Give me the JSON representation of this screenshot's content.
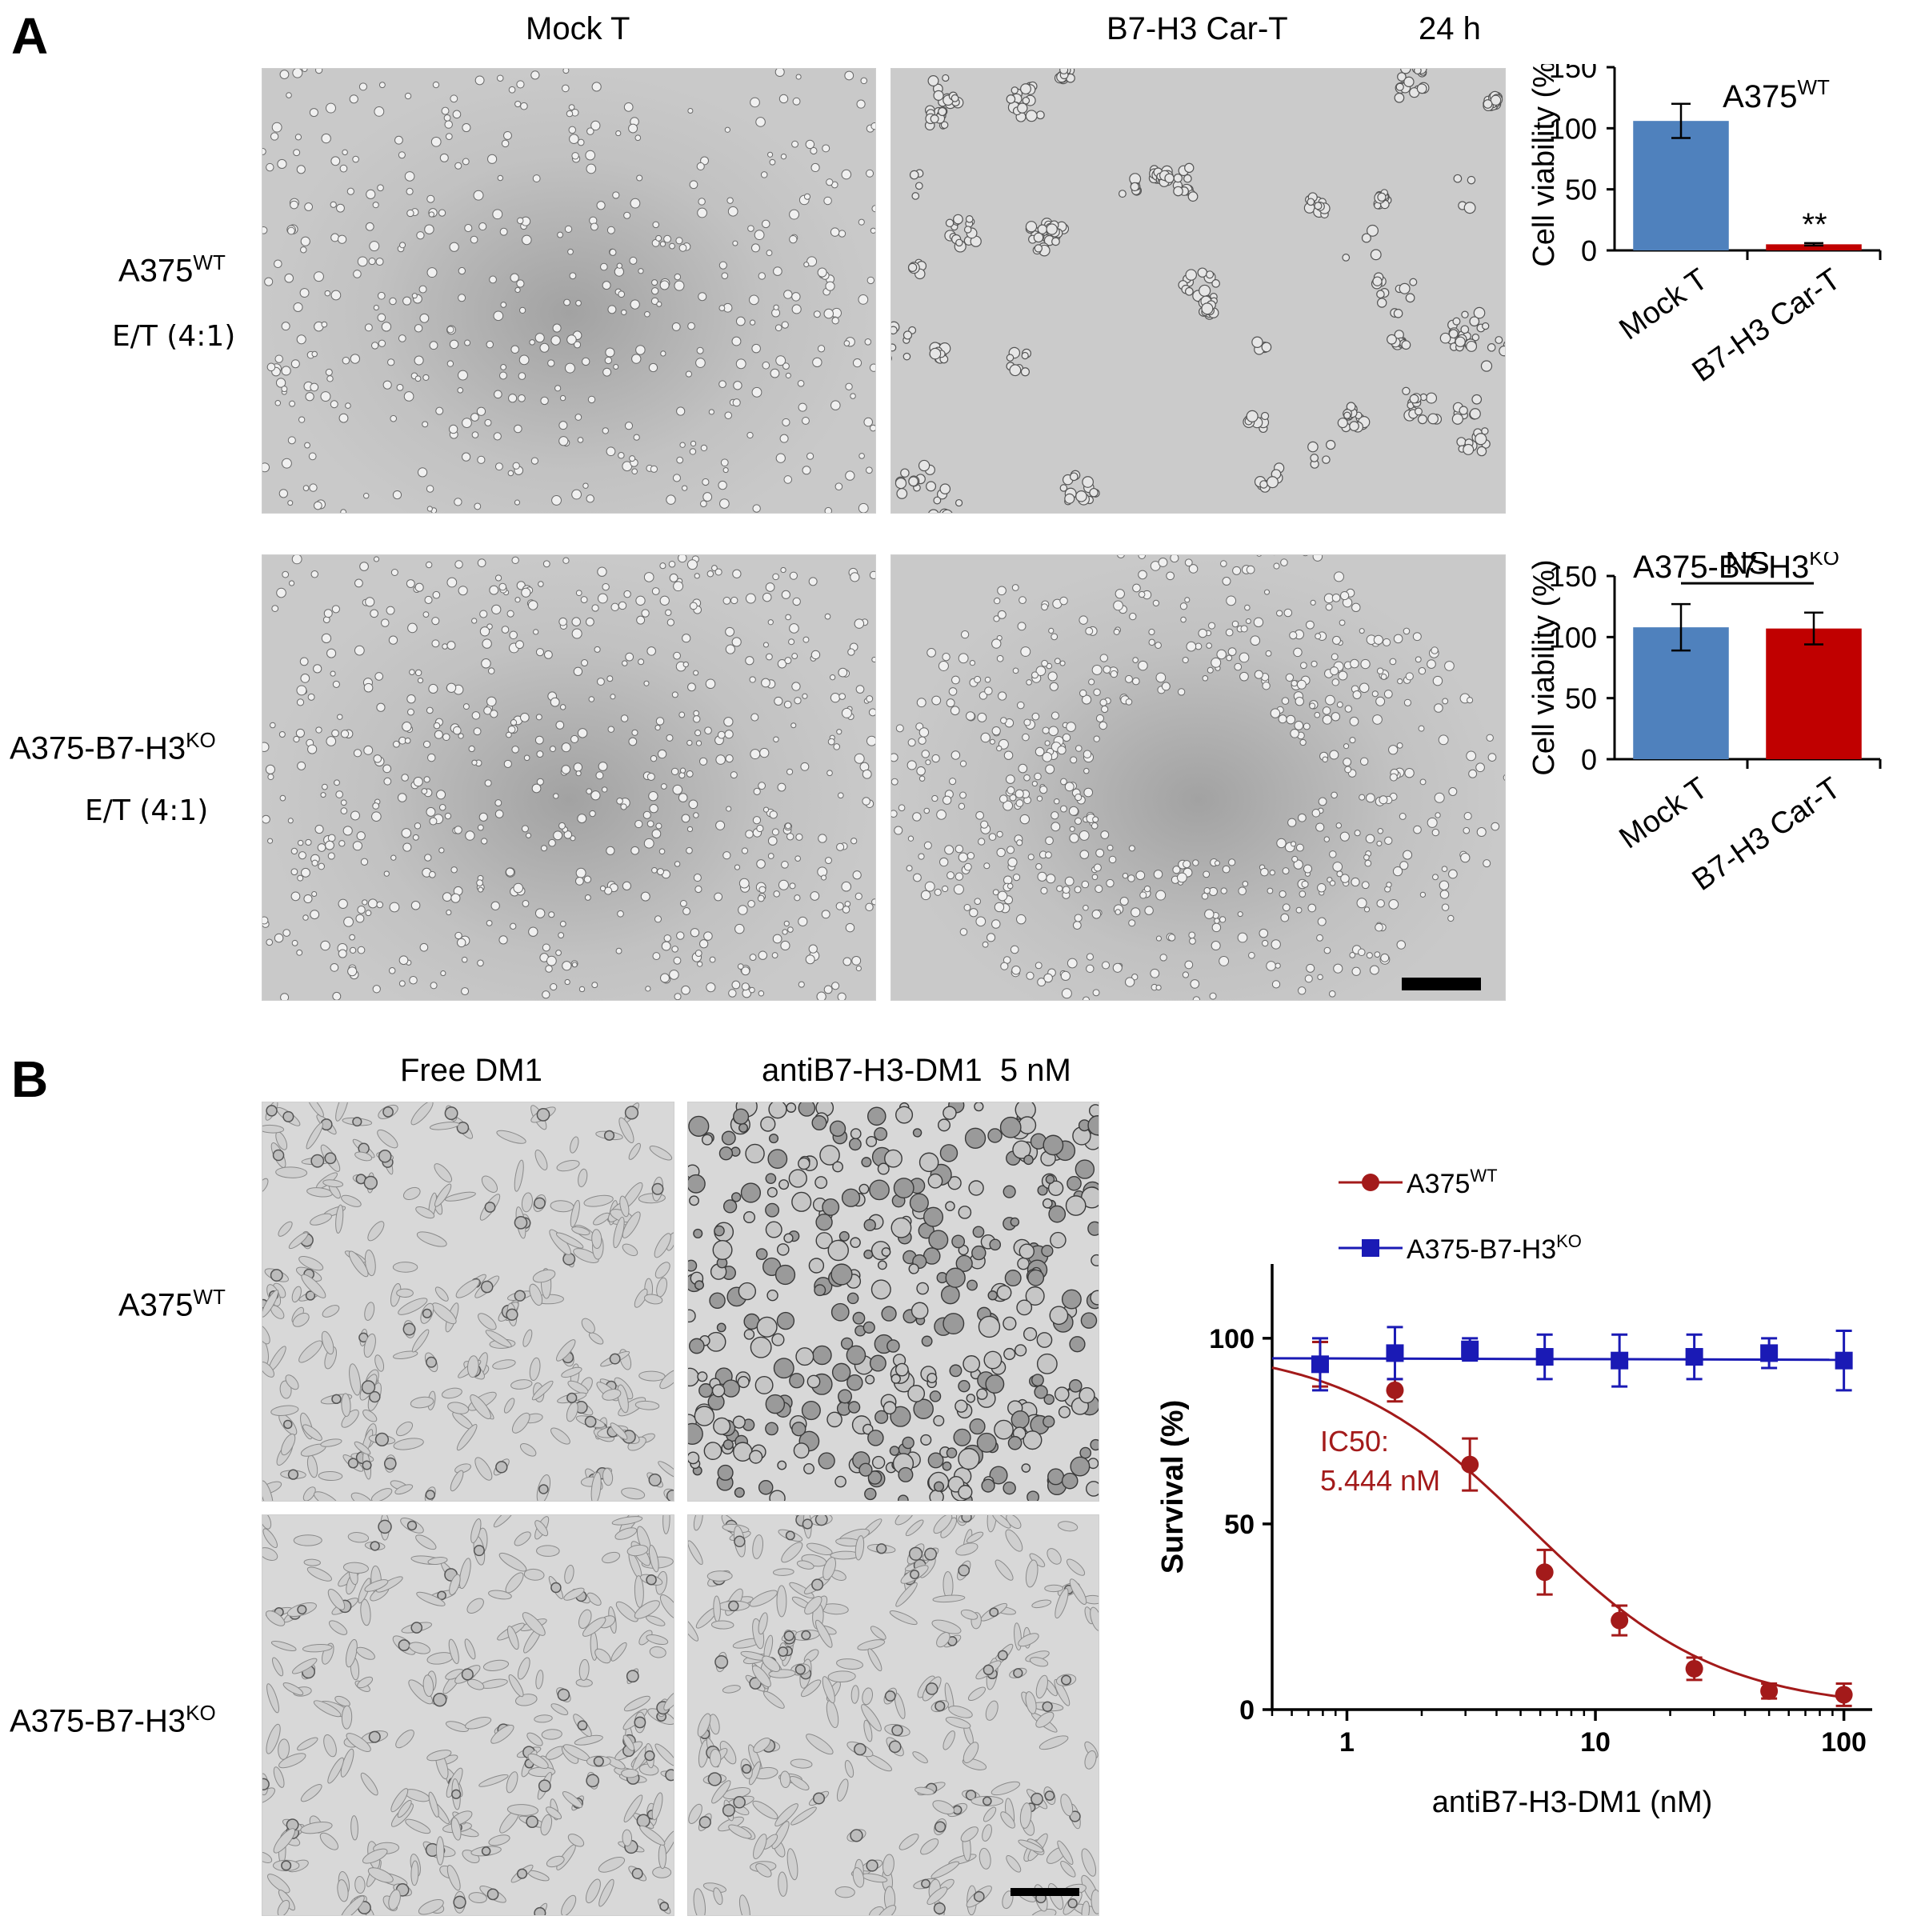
{
  "panel_a": {
    "letter": "A",
    "col_mock": "Mock T",
    "col_car": "B7-H3 Car-T",
    "time": "24 h",
    "row1": {
      "base": "A375",
      "sup": "WT",
      "sub": "E/T (4:1)"
    },
    "row2": {
      "base": "A375-B7-H3",
      "sup": "KO",
      "sub": "E/T (4:1)"
    }
  },
  "panel_b": {
    "letter": "B",
    "col_free": "Free DM1",
    "col_adc": "antiB7-H3-DM1  5 nM",
    "row1": {
      "base": "A375",
      "sup": "WT"
    },
    "row2": {
      "base": "A375-B7-H3",
      "sup": "KO"
    }
  },
  "colors": {
    "blue_bar": "#4f81bd",
    "red_bar": "#c00000",
    "wt_curve": "#a31a1a",
    "ko_curve": "#1a1ab5"
  },
  "chart_data": [
    {
      "type": "bar",
      "title": "A375",
      "title_sup": "WT",
      "categories": [
        "Mock T",
        "B7-H3 Car-T"
      ],
      "values": [
        106,
        5
      ],
      "errors": [
        14,
        1
      ],
      "ylabel": "Cell viability (%)",
      "ylim": [
        0,
        150
      ],
      "yticks": [
        "0",
        "50",
        "100",
        "150"
      ],
      "annotation": "**"
    },
    {
      "type": "bar",
      "title": "A375-B7-H3",
      "title_sup": "KO",
      "categories": [
        "Mock T",
        "B7-H3 Car-T"
      ],
      "values": [
        108,
        107
      ],
      "errors": [
        19,
        13
      ],
      "ylabel": "Cell viability (%)",
      "ylim": [
        0,
        150
      ],
      "yticks": [
        "0",
        "50",
        "100",
        "150"
      ],
      "annotation": "NS"
    },
    {
      "type": "scatter",
      "xlabel": "antiB7-H3-DM1 (nM)",
      "ylabel": "Survival (%)",
      "xscale": "log",
      "xlim": [
        0.5,
        130
      ],
      "ylim": [
        0,
        120
      ],
      "xticks": [
        "1",
        "10",
        "100"
      ],
      "yticks": [
        "0",
        "50",
        "100"
      ],
      "annotation": "IC50:\n5.444 nM",
      "series": [
        {
          "name": "A375",
          "name_sup": "WT",
          "marker": "circle",
          "x": [
            0.78,
            1.56,
            3.125,
            6.25,
            12.5,
            25,
            50,
            100
          ],
          "y": [
            93,
            86,
            66,
            37,
            24,
            11,
            5,
            4
          ],
          "err": [
            6,
            3,
            7,
            6,
            4,
            3,
            2,
            3
          ],
          "ic50": 5.444
        },
        {
          "name": "A375-B7-H3",
          "name_sup": "KO",
          "marker": "square",
          "x": [
            0.78,
            1.56,
            3.125,
            6.25,
            12.5,
            25,
            50,
            100
          ],
          "y": [
            93,
            96,
            97,
            95,
            94,
            95,
            96,
            94
          ],
          "err": [
            7,
            7,
            3,
            6,
            7,
            6,
            4,
            8
          ]
        }
      ]
    }
  ]
}
